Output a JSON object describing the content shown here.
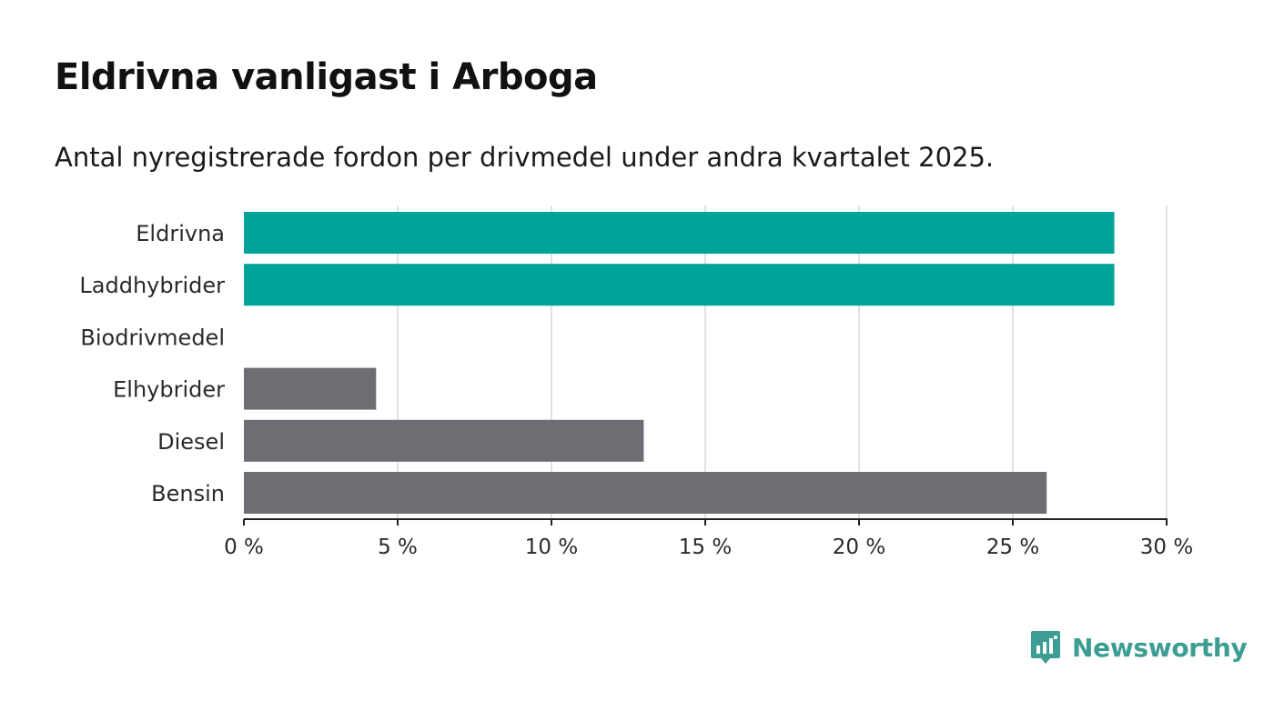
{
  "header": {
    "title": "Eldrivna vanligast i Arboga",
    "subtitle": "Antal nyregistrerade fordon per drivmedel under andra kvartalet 2025."
  },
  "brand": {
    "name": "Newsworthy",
    "icon": "newsworthy-logo-icon",
    "color": "#3c9e92"
  },
  "colors": {
    "highlight": "#00a39a",
    "default": "#6f6d74",
    "grid": "#d9d9d9",
    "axis": "#222222"
  },
  "chart_data": {
    "type": "bar",
    "orientation": "horizontal",
    "categories": [
      "Eldrivna",
      "Laddhybrider",
      "Biodrivmedel",
      "Elhybrider",
      "Diesel",
      "Bensin"
    ],
    "values": [
      28.3,
      28.3,
      0,
      4.3,
      13.0,
      26.1
    ],
    "highlighted": [
      true,
      true,
      true,
      false,
      false,
      false
    ],
    "xlim": [
      0,
      30
    ],
    "xticks": [
      0,
      5,
      10,
      15,
      20,
      25,
      30
    ],
    "xtick_labels": [
      "0 %",
      "5 %",
      "10 %",
      "15 %",
      "20 %",
      "25 %",
      "30 %"
    ],
    "grid": true,
    "legend": "none"
  }
}
